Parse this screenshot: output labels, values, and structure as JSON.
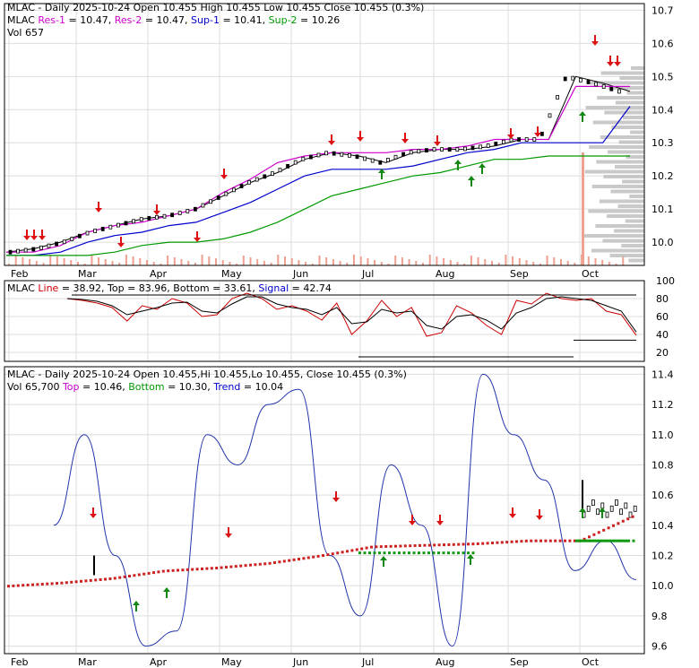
{
  "colors": {
    "grid": "#dddddd",
    "frame": "#000000",
    "text": "#000000",
    "res": "#cc00cc",
    "sup": "#0000cc",
    "sup2": "#009900",
    "down_arrow": "#dd1111",
    "up_arrow": "#118811",
    "volume_bar": "#f0a090",
    "volume_profile": "#bbbbbb",
    "stoch_k": "#cc0000",
    "stoch_d": "#000000",
    "trend": "#2233aa",
    "top_dots": "#cc2222",
    "bottom_dots": "#119911"
  },
  "panel1": {
    "title_ticker": "MLAC",
    "title_rest": " - Daily 2025-10-24 Open 10.455  High 10.455  Low 10.455  Close 10.455 (0.3%)",
    "res1_label": "Res-1",
    "res1_value": " = 10.47, ",
    "res2_label": "Res-2",
    "res2_value": " = 10.47, ",
    "sup1_label": "Sup-1",
    "sup1_value": " = 10.41, ",
    "sup2_label": "Sup-2",
    "sup2_value": " = 10.26",
    "vol_label": "Vol 657"
  },
  "panel2": {
    "ticker": "MLAC",
    "line_label": "Line",
    "line_value": " = 38.92, ",
    "top_label": "Top",
    "top_value": " = 83.96, ",
    "bottom_label": "Bottom",
    "bottom_value": " = 33.61, ",
    "signal_label": "Signal",
    "signal_value": " = 42.74"
  },
  "panel3": {
    "title": "MLAC - Daily 2025-10-24 Open 10.455,Hi 10.455,Lo 10.455, Close 10.455 (0.3%)",
    "vol_label": "Vol 65,700 ",
    "top_label": "Top",
    "top_value": " = 10.46, ",
    "bottom_label": "Bottom",
    "bottom_value": " = 10.30, ",
    "trend_label": "Trend",
    "trend_value": " = 10.04"
  },
  "chart_data": [
    {
      "type": "line",
      "panel": "price",
      "x_labels": [
        "Feb",
        "Mar",
        "Apr",
        "May",
        "Jun",
        "Jul",
        "Aug",
        "Sep",
        "Oct"
      ],
      "y_ticks": [
        10.0,
        10.1,
        10.2,
        10.3,
        10.4,
        10.5,
        10.6,
        10.7
      ],
      "ylim": [
        9.93,
        10.72
      ],
      "grid": true,
      "series": [
        {
          "name": "Close",
          "values": [
            9.97,
            9.98,
            10.0,
            10.03,
            10.05,
            10.07,
            10.08,
            10.1,
            10.14,
            10.18,
            10.21,
            10.25,
            10.27,
            10.26,
            10.24,
            10.27,
            10.28,
            10.28,
            10.29,
            10.31,
            10.31,
            10.5,
            10.48,
            10.455
          ]
        },
        {
          "name": "Res-1",
          "values": [
            9.97,
            9.97,
            9.99,
            10.03,
            10.05,
            10.06,
            10.08,
            10.1,
            10.15,
            10.19,
            10.24,
            10.26,
            10.27,
            10.27,
            10.27,
            10.28,
            10.28,
            10.29,
            10.31,
            10.31,
            10.31,
            10.47,
            10.47,
            10.47
          ]
        },
        {
          "name": "Sup-1",
          "values": [
            9.96,
            9.96,
            9.97,
            10.0,
            10.02,
            10.03,
            10.05,
            10.06,
            10.09,
            10.12,
            10.16,
            10.2,
            10.22,
            10.22,
            10.22,
            10.23,
            10.25,
            10.27,
            10.28,
            10.3,
            10.3,
            10.3,
            10.3,
            10.41
          ]
        },
        {
          "name": "Sup-2",
          "values": [
            9.96,
            9.96,
            9.96,
            9.96,
            9.97,
            9.99,
            10.0,
            10.0,
            10.01,
            10.03,
            10.06,
            10.1,
            10.14,
            10.16,
            10.18,
            10.2,
            10.21,
            10.23,
            10.25,
            10.25,
            10.26,
            10.26,
            10.26,
            10.26
          ]
        }
      ]
    },
    {
      "type": "line",
      "panel": "stochastic",
      "y_ticks": [
        20,
        40,
        60,
        80,
        100
      ],
      "ylim": [
        10,
        100
      ],
      "series": [
        {
          "name": "Line",
          "values": [
            80,
            78,
            75,
            70,
            55,
            72,
            68,
            80,
            75,
            60,
            62,
            80,
            86,
            80,
            68,
            72,
            66,
            56,
            75,
            40,
            55,
            78,
            60,
            70,
            38,
            42,
            72,
            64,
            50,
            40,
            78,
            74,
            86,
            80,
            78,
            80,
            66,
            62,
            38.92
          ]
        },
        {
          "name": "Signal",
          "values": [
            80,
            79,
            77,
            72,
            62,
            66,
            70,
            75,
            76,
            66,
            64,
            74,
            82,
            82,
            74,
            70,
            68,
            62,
            70,
            52,
            54,
            68,
            64,
            66,
            50,
            46,
            60,
            62,
            56,
            46,
            64,
            70,
            80,
            82,
            80,
            78,
            72,
            66,
            42.74
          ]
        },
        {
          "name": "Top",
          "values": [
            83.96,
            83.96,
            83.96,
            83.96
          ]
        },
        {
          "name": "Bottom",
          "values": [
            33.61,
            33.61,
            33.61,
            33.61
          ]
        }
      ]
    },
    {
      "type": "line",
      "panel": "trend",
      "y_ticks": [
        9.6,
        9.8,
        10.0,
        10.2,
        10.4,
        10.6,
        10.8,
        11.0,
        11.2,
        11.4
      ],
      "ylim": [
        9.55,
        11.45
      ],
      "series": [
        {
          "name": "Top",
          "values": [
            10.0,
            10.02,
            10.05,
            10.1,
            10.12,
            10.15,
            10.2,
            10.26,
            10.27,
            10.28,
            10.3,
            10.3,
            10.46
          ]
        },
        {
          "name": "Bottom",
          "values": [
            10.2,
            10.22,
            10.22,
            10.24,
            10.26,
            10.3,
            10.3,
            10.3
          ]
        },
        {
          "name": "Trend",
          "values": [
            10.4,
            11.0,
            10.2,
            9.6,
            9.7,
            11.0,
            10.8,
            11.2,
            11.3,
            10.2,
            9.8,
            10.8,
            10.4,
            9.6,
            11.4,
            11.0,
            10.7,
            10.1,
            10.3,
            10.04
          ]
        }
      ]
    }
  ]
}
